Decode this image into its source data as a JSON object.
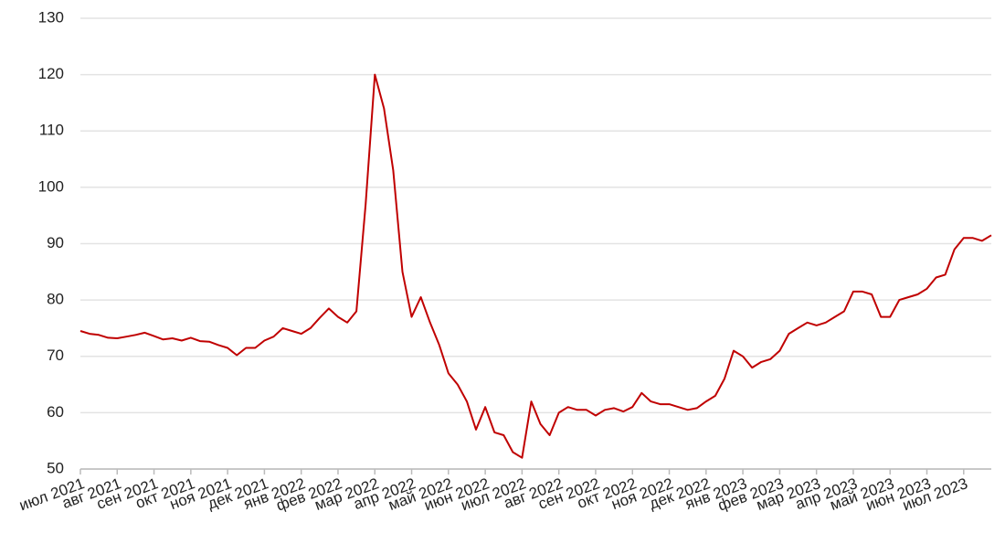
{
  "chart_data": {
    "type": "line",
    "color": "#c00000",
    "grid": true,
    "x": [
      0,
      0.25,
      0.5,
      0.75,
      1,
      1.25,
      1.5,
      1.75,
      2,
      2.25,
      2.5,
      2.75,
      3,
      3.25,
      3.5,
      3.75,
      4,
      4.25,
      4.5,
      4.75,
      5,
      5.25,
      5.5,
      5.75,
      6,
      6.25,
      6.5,
      6.75,
      7,
      7.25,
      7.5,
      7.75,
      8,
      8.25,
      8.5,
      8.75,
      9,
      9.25,
      9.5,
      9.75,
      10,
      10.25,
      10.5,
      10.75,
      11,
      11.25,
      11.5,
      11.75,
      12,
      12.25,
      12.5,
      12.75,
      13,
      13.25,
      13.5,
      13.75,
      14,
      14.25,
      14.5,
      14.75,
      15,
      15.25,
      15.5,
      15.75,
      16,
      16.25,
      16.5,
      16.75,
      17,
      17.25,
      17.5,
      17.75,
      18,
      18.25,
      18.5,
      18.75,
      19,
      19.25,
      19.5,
      19.75,
      20,
      20.25,
      20.5,
      20.75,
      21,
      21.25,
      21.5,
      21.75,
      22,
      22.25,
      22.5,
      22.75,
      23,
      23.25,
      23.5,
      23.75,
      24,
      24.25,
      24.5,
      24.75
    ],
    "values": [
      74.5,
      74,
      73.8,
      73.3,
      73.2,
      73.5,
      73.8,
      74.2,
      73.6,
      73.0,
      73.2,
      72.8,
      73.3,
      72.7,
      72.6,
      72.0,
      71.5,
      70.2,
      71.5,
      71.5,
      72.8,
      73.5,
      75.0,
      74.5,
      74.0,
      75.0,
      76.8,
      78.5,
      77,
      76,
      78,
      97,
      120,
      114,
      103,
      85,
      77,
      80.5,
      76,
      72,
      67,
      65,
      62,
      57,
      61,
      56.5,
      56,
      53,
      52,
      62,
      58,
      56,
      60,
      61,
      60.5,
      60.5,
      59.5,
      60.5,
      60.8,
      60.2,
      61,
      63.5,
      62,
      61.5,
      61.5,
      61,
      60.5,
      60.8,
      62,
      63,
      66,
      71,
      70,
      68,
      69,
      69.5,
      71,
      74,
      75,
      76,
      75.5,
      76,
      77,
      78,
      81.5,
      81.5,
      81,
      77,
      77,
      80,
      80.5,
      81,
      82,
      84,
      84.5,
      89,
      91,
      91,
      90.5,
      91.5
    ],
    "xlim": [
      0,
      24.75
    ],
    "xticks": [
      {
        "value": 0,
        "label": "июл 2021"
      },
      {
        "value": 1,
        "label": "авг 2021"
      },
      {
        "value": 2,
        "label": "сен 2021"
      },
      {
        "value": 3,
        "label": "окт 2021"
      },
      {
        "value": 4,
        "label": "ноя 2021"
      },
      {
        "value": 5,
        "label": "дек 2021"
      },
      {
        "value": 6,
        "label": "янв 2022"
      },
      {
        "value": 7,
        "label": "фев 2022"
      },
      {
        "value": 8,
        "label": "мар 2022"
      },
      {
        "value": 9,
        "label": "апр 2022"
      },
      {
        "value": 10,
        "label": "май 2022"
      },
      {
        "value": 11,
        "label": "июн 2022"
      },
      {
        "value": 12,
        "label": "июл 2022"
      },
      {
        "value": 13,
        "label": "авг 2022"
      },
      {
        "value": 14,
        "label": "сен 2022"
      },
      {
        "value": 15,
        "label": "окт 2022"
      },
      {
        "value": 16,
        "label": "ноя 2022"
      },
      {
        "value": 17,
        "label": "дек 2022"
      },
      {
        "value": 18,
        "label": "янв 2023"
      },
      {
        "value": 19,
        "label": "фев 2023"
      },
      {
        "value": 20,
        "label": "мар 2023"
      },
      {
        "value": 21,
        "label": "апр 2023"
      },
      {
        "value": 22,
        "label": "май 2023"
      },
      {
        "value": 23,
        "label": "июн 2023"
      },
      {
        "value": 24,
        "label": "июл 2023"
      }
    ],
    "ylim": [
      50,
      130
    ],
    "yticks": [
      50,
      60,
      70,
      80,
      90,
      100,
      110,
      120,
      130
    ]
  }
}
